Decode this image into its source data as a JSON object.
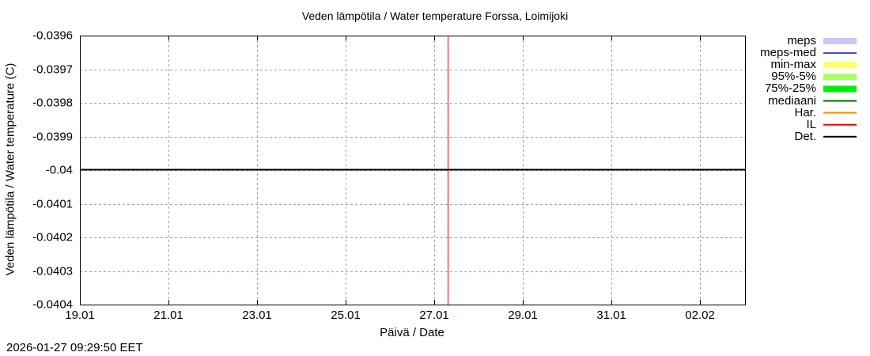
{
  "chart_data": {
    "type": "line",
    "title": "Veden lämpötila / Water temperature Forssa, Loimijoki",
    "xlabel": "Päivä / Date",
    "ylabel": "Veden lämpötila / Water temperature (C)",
    "x_ticks": [
      "19.01",
      "21.01",
      "23.01",
      "25.01",
      "27.01",
      "29.01",
      "31.01",
      "02.02"
    ],
    "y_ticks": [
      "-0.0396",
      "-0.0397",
      "-0.0398",
      "-0.0399",
      "-0.04",
      "-0.0401",
      "-0.0402",
      "-0.0403",
      "-0.0404"
    ],
    "ylim": [
      -0.0404,
      -0.0396
    ],
    "xlim": [
      "19.01",
      "03.02"
    ],
    "grid": true,
    "legend_position": "right",
    "legend": [
      {
        "label": "meps",
        "color": "#c8c8f8",
        "style": "band"
      },
      {
        "label": "meps-med",
        "color": "#4444cc",
        "style": "line"
      },
      {
        "label": "min-max",
        "color": "#ffff66",
        "style": "band"
      },
      {
        "label": "95%-5%",
        "color": "#aaff66",
        "style": "band"
      },
      {
        "label": "75%-25%",
        "color": "#00ee00",
        "style": "band"
      },
      {
        "label": "mediaani",
        "color": "#006600",
        "style": "line"
      },
      {
        "label": "Har.",
        "color": "#ff8800",
        "style": "line"
      },
      {
        "label": "IL",
        "color": "#ee0000",
        "style": "line"
      },
      {
        "label": "Det.",
        "color": "#000000",
        "style": "line"
      }
    ],
    "series": [
      {
        "name": "Det.",
        "x": [
          "19.01",
          "03.02"
        ],
        "values": [
          -0.04,
          -0.04
        ]
      }
    ],
    "annotations": [
      {
        "type": "vertical-line",
        "name": "IL",
        "x": "27.01 ~08:00",
        "color": "#ee0000"
      }
    ]
  },
  "footer": {
    "timestamp": "2026-01-27 09:29:50 EET"
  }
}
